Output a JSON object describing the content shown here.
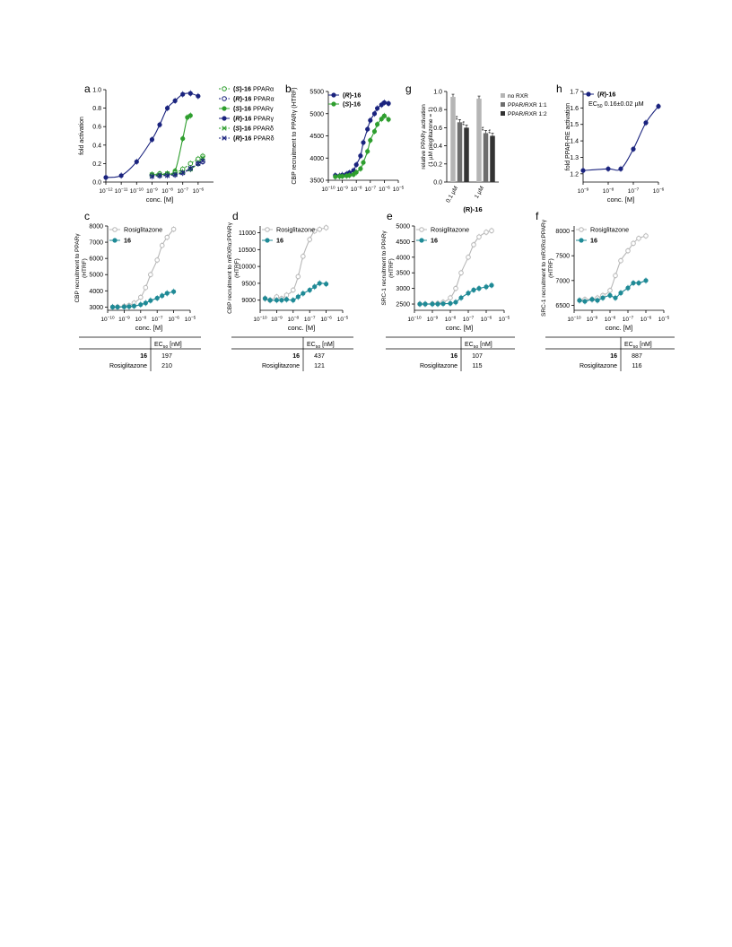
{
  "colors": {
    "navy": "#1a237e",
    "green": "#2e9e2e",
    "teal": "#1f8a96",
    "grey": "#b8b8b8",
    "bar_light": "#b5b5b5",
    "bar_mid": "#6e6e6e",
    "bar_dark": "#333333",
    "axis": "#000000"
  },
  "chart_data": [
    {
      "panel": "a",
      "type": "line",
      "xscale": "log",
      "xlabel": "conc. [M]",
      "ylabel": "fold activation",
      "xlim": [
        1e-12,
        1e-05
      ],
      "ylim": [
        0,
        1.0
      ],
      "xticks": [
        -12,
        -11,
        -10,
        -9,
        -8,
        -7,
        -6
      ],
      "yticks": [
        "0.0",
        "0.2",
        "0.4",
        "0.6",
        "0.8",
        "1.0"
      ],
      "legend": [
        {
          "compound": "(S)-16",
          "target": "PPARα",
          "marker": "open-circle",
          "dash": true,
          "color": "green"
        },
        {
          "compound": "(R)-16",
          "target": "PPARα",
          "marker": "open-circle",
          "dash": true,
          "color": "navy"
        },
        {
          "compound": "(S)-16",
          "target": "PPARγ",
          "marker": "filled-circle",
          "dash": false,
          "color": "green"
        },
        {
          "compound": "(R)-16",
          "target": "PPARγ",
          "marker": "filled-circle",
          "dash": false,
          "color": "navy"
        },
        {
          "compound": "(S)-16",
          "target": "PPARδ",
          "marker": "cross",
          "dash": true,
          "color": "green"
        },
        {
          "compound": "(R)-16",
          "target": "PPARδ",
          "marker": "cross",
          "dash": true,
          "color": "navy"
        }
      ],
      "series": [
        {
          "color": "navy",
          "marker": "filled-circle",
          "dash": false,
          "x": [
            -12,
            -11,
            -10,
            -9,
            -8.5,
            -8,
            -7.5,
            -7,
            -6.5,
            -6
          ],
          "y": [
            0.05,
            0.07,
            0.22,
            0.46,
            0.62,
            0.8,
            0.88,
            0.95,
            0.96,
            0.93
          ]
        },
        {
          "color": "green",
          "marker": "filled-circle",
          "dash": false,
          "x": [
            -9,
            -8.5,
            -8,
            -7.5,
            -7,
            -6.7,
            -6.5
          ],
          "y": [
            0.08,
            0.08,
            0.09,
            0.12,
            0.47,
            0.7,
            0.72
          ]
        },
        {
          "color": "green",
          "marker": "open-circle",
          "dash": true,
          "x": [
            -9,
            -8.5,
            -8,
            -7.5,
            -7,
            -6.5,
            -6,
            -5.7
          ],
          "y": [
            0.08,
            0.09,
            0.09,
            0.1,
            0.14,
            0.2,
            0.25,
            0.28
          ]
        },
        {
          "color": "navy",
          "marker": "open-circle",
          "dash": true,
          "x": [
            -9,
            -8.5,
            -8,
            -7.5,
            -7,
            -6.5,
            -6,
            -5.7
          ],
          "y": [
            0.07,
            0.07,
            0.08,
            0.08,
            0.1,
            0.14,
            0.2,
            0.22
          ]
        },
        {
          "color": "green",
          "marker": "cross",
          "dash": true,
          "x": [
            -9,
            -8.5,
            -8,
            -7.5,
            -7,
            -6.5,
            -6,
            -5.7
          ],
          "y": [
            0.08,
            0.08,
            0.09,
            0.09,
            0.11,
            0.14,
            0.2,
            0.26
          ]
        },
        {
          "color": "navy",
          "marker": "cross",
          "dash": true,
          "x": [
            -9,
            -8.5,
            -8,
            -7.5,
            -7,
            -6.5,
            -6,
            -5.7
          ],
          "y": [
            0.06,
            0.07,
            0.07,
            0.08,
            0.1,
            0.15,
            0.2,
            0.23
          ]
        }
      ]
    },
    {
      "panel": "b",
      "type": "line",
      "xscale": "log",
      "xlabel": "",
      "ylabel": "CBP recruitment to PPARγ (HTRF)",
      "xlim": [
        1e-10,
        1e-05
      ],
      "ylim": [
        3500,
        5500
      ],
      "xticks": [
        -10,
        -9,
        -8,
        -7,
        -6,
        -5
      ],
      "yticks": [
        "3500",
        "4000",
        "4500",
        "5000",
        "5500"
      ],
      "legend": [
        {
          "compound": "(R)-16",
          "marker": "filled-circle",
          "color": "navy"
        },
        {
          "compound": "(S)-16",
          "marker": "filled-circle",
          "color": "green"
        }
      ],
      "series": [
        {
          "color": "navy",
          "marker": "filled-circle",
          "dash": false,
          "x": [
            -9.5,
            -9.2,
            -9,
            -8.7,
            -8.5,
            -8.2,
            -8,
            -7.7,
            -7.5,
            -7.2,
            -7,
            -6.7,
            -6.5,
            -6.2,
            -6,
            -5.7
          ],
          "y": [
            3610,
            3600,
            3620,
            3640,
            3670,
            3720,
            3850,
            4050,
            4350,
            4650,
            4850,
            5000,
            5120,
            5200,
            5250,
            5230
          ]
        },
        {
          "color": "green",
          "marker": "filled-circle",
          "dash": false,
          "x": [
            -9.5,
            -9.2,
            -9,
            -8.7,
            -8.5,
            -8.2,
            -8,
            -7.7,
            -7.5,
            -7.2,
            -7,
            -6.7,
            -6.5,
            -6.2,
            -6,
            -5.7
          ],
          "y": [
            3580,
            3590,
            3590,
            3600,
            3610,
            3630,
            3680,
            3760,
            3900,
            4150,
            4400,
            4600,
            4760,
            4880,
            4950,
            4870
          ]
        }
      ]
    },
    {
      "panel": "g",
      "type": "bar",
      "ylabel": "relative PPARγ activation (1 µM pioglitazone = 1)",
      "ylim": [
        0,
        1.0
      ],
      "yticks": [
        "0.0",
        "0.2",
        "0.4",
        "0.6",
        "0.8",
        "1.0"
      ],
      "groups": [
        "0.1 µM",
        "1 µM"
      ],
      "group_label": "(R)-16",
      "series": [
        {
          "name": "no RXR",
          "color": "bar_light",
          "values": [
            0.94,
            0.92
          ]
        },
        {
          "name": "PPAR/RXR 1:1",
          "color": "bar_mid",
          "values": [
            0.66,
            0.54
          ]
        },
        {
          "name": "PPAR/RXR 1:2",
          "color": "bar_dark",
          "values": [
            0.6,
            0.51
          ]
        }
      ],
      "significance": [
        "",
        "**",
        "**",
        "",
        "**",
        "**"
      ]
    },
    {
      "panel": "h",
      "type": "line",
      "xscale": "log",
      "xlabel": "conc. [M]",
      "ylabel": "fold PPAR-RE activation",
      "xlim": [
        1e-09,
        1e-06
      ],
      "ylim": [
        1.15,
        1.7
      ],
      "xticks": [
        -9,
        -8,
        -7,
        -6
      ],
      "yticks": [
        "1.2",
        "1.3",
        "1.4",
        "1.5",
        "1.6",
        "1.7"
      ],
      "legend": [
        {
          "compound": "(R)-16",
          "marker": "filled-circle",
          "color": "navy"
        }
      ],
      "annotation": "EC50 0.16±0.02 µM",
      "series": [
        {
          "color": "navy",
          "marker": "filled-circle",
          "dash": false,
          "x": [
            -9,
            -8,
            -7.5,
            -7,
            -6.5,
            -6
          ],
          "y": [
            1.22,
            1.23,
            1.23,
            1.35,
            1.51,
            1.61
          ]
        }
      ]
    },
    {
      "panel": "c",
      "type": "line",
      "xscale": "log",
      "xlabel": "conc. [M]",
      "ylabel": "CBP recruitment to PPARγ (HTRF)",
      "xlim": [
        1e-10,
        1e-05
      ],
      "ylim": [
        2800,
        8000
      ],
      "xticks": [
        -10,
        -9,
        -8,
        -7,
        -6,
        -5
      ],
      "yticks": [
        "3000",
        "4000",
        "5000",
        "6000",
        "7000",
        "8000"
      ],
      "legend": [
        {
          "compound": "Rosiglitazone",
          "marker": "open-circle",
          "color": "grey"
        },
        {
          "compound": "16",
          "marker": "filled-circle",
          "color": "teal"
        }
      ],
      "series": [
        {
          "color": "grey",
          "marker": "open-circle",
          "dash": false,
          "x": [
            -9.7,
            -9.4,
            -9,
            -8.7,
            -8.4,
            -8,
            -7.7,
            -7.4,
            -7,
            -6.7,
            -6.4,
            -6
          ],
          "y": [
            3000,
            3010,
            3050,
            3100,
            3250,
            3600,
            4200,
            5000,
            5900,
            6800,
            7300,
            7800
          ]
        },
        {
          "color": "teal",
          "marker": "filled-circle",
          "dash": false,
          "x": [
            -9.7,
            -9.4,
            -9,
            -8.7,
            -8.4,
            -8,
            -7.7,
            -7.4,
            -7,
            -6.7,
            -6.4,
            -6
          ],
          "y": [
            3000,
            3000,
            3010,
            3030,
            3060,
            3150,
            3250,
            3400,
            3550,
            3700,
            3850,
            3950
          ]
        }
      ],
      "ec50_table": {
        "header": "EC50 [nM]",
        "rows": [
          [
            "16",
            "197"
          ],
          [
            "Rosiglitazone",
            "210"
          ]
        ]
      }
    },
    {
      "panel": "d",
      "type": "line",
      "xscale": "log",
      "xlabel": "conc. [M]",
      "ylabel": "CBP recruitment to mRXRα:PPARγ (HTRF)",
      "xlim": [
        1e-10,
        1e-05
      ],
      "ylim": [
        8700,
        11200
      ],
      "xticks": [
        -10,
        -9,
        -8,
        -7,
        -6,
        -5
      ],
      "yticks": [
        "9000",
        "9500",
        "10000",
        "10500",
        "11000"
      ],
      "legend": [
        {
          "compound": "Rosiglitazone",
          "marker": "open-circle",
          "color": "grey"
        },
        {
          "compound": "16",
          "marker": "filled-circle",
          "color": "teal"
        }
      ],
      "series": [
        {
          "color": "grey",
          "marker": "open-circle",
          "dash": false,
          "x": [
            -9.7,
            -9.4,
            -9,
            -8.7,
            -8.4,
            -8,
            -7.7,
            -7.4,
            -7,
            -6.7,
            -6.4,
            -6
          ],
          "y": [
            9050,
            9000,
            9100,
            9050,
            9150,
            9300,
            9700,
            10300,
            10800,
            11050,
            11100,
            11150
          ]
        },
        {
          "color": "teal",
          "marker": "filled-circle",
          "dash": false,
          "x": [
            -9.7,
            -9.4,
            -9,
            -8.7,
            -8.4,
            -8,
            -7.7,
            -7.4,
            -7,
            -6.7,
            -6.4,
            -6
          ],
          "y": [
            9050,
            9000,
            9000,
            9000,
            9020,
            9000,
            9100,
            9200,
            9300,
            9400,
            9500,
            9480
          ]
        }
      ],
      "ec50_table": {
        "header": "EC50 [nM]",
        "rows": [
          [
            "16",
            "437"
          ],
          [
            "Rosiglitazone",
            "121"
          ]
        ]
      }
    },
    {
      "panel": "e",
      "type": "line",
      "xscale": "log",
      "xlabel": "conc. [M]",
      "ylabel": "SRC-1 recruitment to PPARγ (HTRF)",
      "xlim": [
        1e-10,
        1e-05
      ],
      "ylim": [
        2300,
        5000
      ],
      "xticks": [
        -10,
        -9,
        -8,
        -7,
        -6,
        -5
      ],
      "yticks": [
        "2500",
        "3000",
        "3500",
        "4000",
        "4500",
        "5000"
      ],
      "legend": [
        {
          "compound": "Rosiglitazone",
          "marker": "open-circle",
          "color": "grey"
        },
        {
          "compound": "16",
          "marker": "filled-circle",
          "color": "teal"
        }
      ],
      "series": [
        {
          "color": "grey",
          "marker": "open-circle",
          "dash": false,
          "x": [
            -9.7,
            -9.4,
            -9,
            -8.7,
            -8.4,
            -8,
            -7.7,
            -7.4,
            -7,
            -6.7,
            -6.4,
            -6,
            -5.7
          ],
          "y": [
            2500,
            2500,
            2510,
            2520,
            2560,
            2700,
            3000,
            3500,
            4000,
            4400,
            4650,
            4800,
            4850
          ]
        },
        {
          "color": "teal",
          "marker": "filled-circle",
          "dash": false,
          "x": [
            -9.7,
            -9.4,
            -9,
            -8.7,
            -8.4,
            -8,
            -7.7,
            -7.4,
            -7,
            -6.7,
            -6.4,
            -6,
            -5.7
          ],
          "y": [
            2500,
            2500,
            2500,
            2500,
            2510,
            2520,
            2560,
            2700,
            2850,
            2950,
            3000,
            3050,
            3100
          ]
        }
      ],
      "ec50_table": {
        "header": "EC50 [nM]",
        "rows": [
          [
            "16",
            "107"
          ],
          [
            "Rosiglitazone",
            "115"
          ]
        ]
      }
    },
    {
      "panel": "f",
      "type": "line",
      "xscale": "log",
      "xlabel": "conc. [M]",
      "ylabel": "SRC-1 recruitment to mRXRα:PPARγ (HTRF)",
      "xlim": [
        1e-10,
        1e-05
      ],
      "ylim": [
        6400,
        8100
      ],
      "xticks": [
        -10,
        -9,
        -8,
        -7,
        -6,
        -5
      ],
      "yticks": [
        "6500",
        "7000",
        "7500",
        "8000"
      ],
      "legend": [
        {
          "compound": "Rosiglitazone",
          "marker": "open-circle",
          "color": "grey"
        },
        {
          "compound": "16",
          "marker": "filled-circle",
          "color": "teal"
        }
      ],
      "series": [
        {
          "color": "grey",
          "marker": "open-circle",
          "dash": false,
          "x": [
            -9.7,
            -9.4,
            -9,
            -8.7,
            -8.4,
            -8,
            -7.7,
            -7.4,
            -7,
            -6.7,
            -6.4,
            -6
          ],
          "y": [
            6600,
            6620,
            6620,
            6650,
            6700,
            6800,
            7100,
            7400,
            7600,
            7750,
            7850,
            7900
          ]
        },
        {
          "color": "teal",
          "marker": "filled-circle",
          "dash": false,
          "x": [
            -9.7,
            -9.4,
            -9,
            -8.7,
            -8.4,
            -8,
            -7.7,
            -7.4,
            -7,
            -6.7,
            -6.4,
            -6
          ],
          "y": [
            6600,
            6580,
            6620,
            6600,
            6650,
            6700,
            6650,
            6750,
            6850,
            6950,
            6950,
            7000
          ]
        }
      ],
      "ec50_table": {
        "header": "EC50 [nM]",
        "rows": [
          [
            "16",
            "887"
          ],
          [
            "Rosiglitazone",
            "116"
          ]
        ]
      }
    }
  ]
}
